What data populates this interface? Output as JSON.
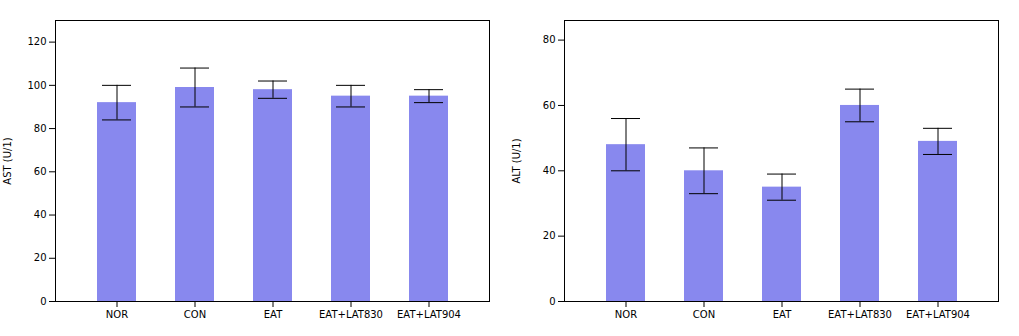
{
  "chart_data": [
    {
      "type": "bar",
      "categories": [
        "NOR",
        "CON",
        "EAT",
        "EAT+LAT830",
        "EAT+LAT904"
      ],
      "values": [
        92,
        99,
        98,
        95,
        95
      ],
      "errors": [
        8,
        9,
        4,
        5,
        3
      ],
      "ylabel": "AST (U/1)",
      "ylim": [
        0,
        130
      ],
      "yticks": [
        0,
        20,
        40,
        60,
        80,
        100,
        120
      ],
      "color": "#8888EE"
    },
    {
      "type": "bar",
      "categories": [
        "NOR",
        "CON",
        "EAT",
        "EAT+LAT830",
        "EAT+LAT904"
      ],
      "values": [
        48,
        40,
        35,
        60,
        49
      ],
      "errors": [
        8,
        7,
        4,
        5,
        4
      ],
      "ylabel": "ALT (U/1)",
      "ylim": [
        0,
        86
      ],
      "yticks": [
        0,
        20,
        40,
        60,
        80
      ],
      "color": "#8888EE"
    }
  ]
}
